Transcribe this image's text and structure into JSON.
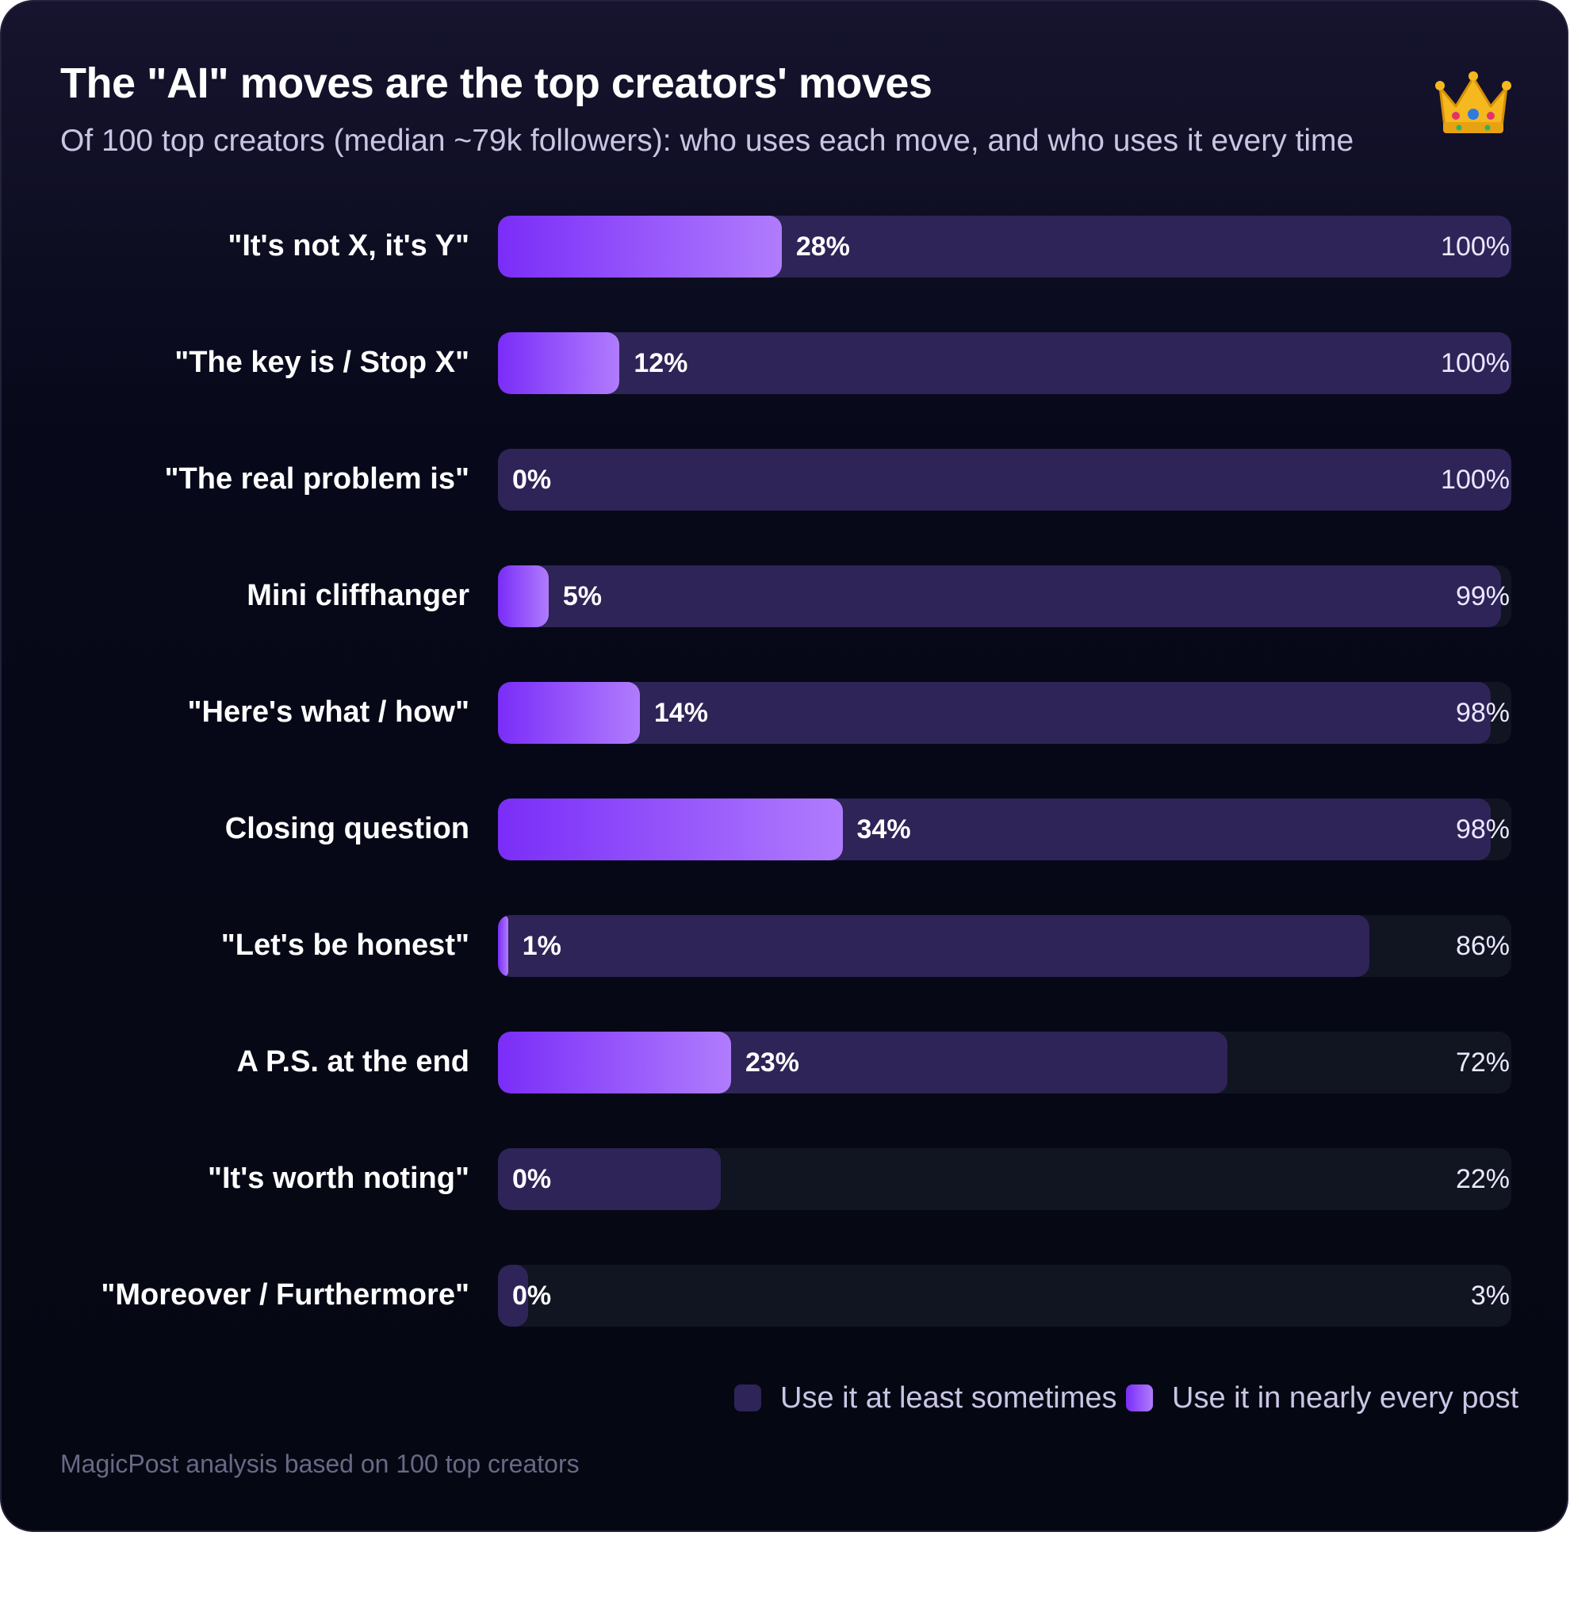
{
  "header": {
    "title": "The \"AI\" moves are the top creators' moves",
    "subtitle": "Of 100 top creators (median ~79k followers): who uses each move, and who uses it every time",
    "icon": "crown-icon"
  },
  "chart_data": {
    "type": "bar",
    "orientation": "horizontal",
    "categories": [
      "\"It's not X, it's Y\"",
      "\"The key is / Stop X\"",
      "\"The real problem is\"",
      "Mini cliffhanger",
      "\"Here's what / how\"",
      "Closing question",
      "\"Let's be honest\"",
      "A P.S. at the end",
      "\"It's worth noting\"",
      "\"Moreover / Furthermore\""
    ],
    "series": [
      {
        "name": "Use it at least sometimes",
        "color": "#2e2457",
        "values": [
          100,
          100,
          100,
          99,
          98,
          98,
          86,
          72,
          22,
          3
        ]
      },
      {
        "name": "Use it in nearly every post",
        "color": "#8b3dfb",
        "values": [
          28,
          12,
          0,
          5,
          14,
          34,
          1,
          23,
          0,
          0
        ]
      }
    ],
    "value_labels": {
      "sometimes": [
        "100%",
        "100%",
        "100%",
        "99%",
        "98%",
        "98%",
        "86%",
        "72%",
        "22%",
        "3%"
      ],
      "every": [
        "28%",
        "12%",
        "0%",
        "5%",
        "14%",
        "34%",
        "1%",
        "23%",
        "0%",
        "0%"
      ]
    },
    "xlim": [
      0,
      100
    ],
    "grid": false,
    "legend_position": "bottom-right"
  },
  "legend": {
    "sometimes": "Use it at least sometimes",
    "every": "Use it in nearly every post"
  },
  "footer": {
    "source": "MagicPost analysis based on 100 top creators"
  }
}
